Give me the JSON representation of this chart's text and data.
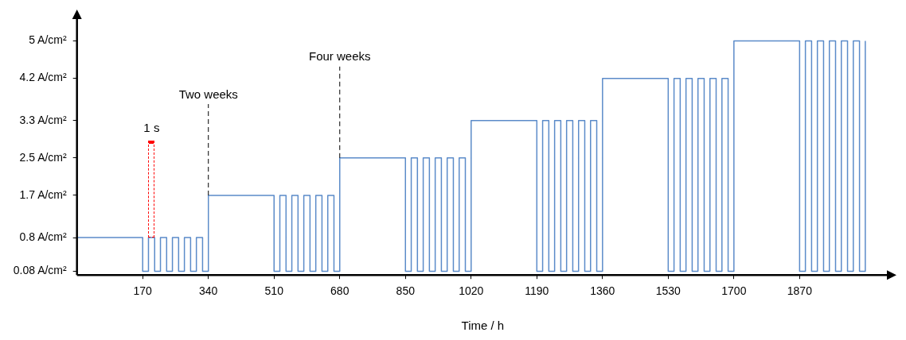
{
  "chart_data": {
    "type": "step",
    "xlabel": "Time / h",
    "x": [
      0,
      170,
      185,
      201,
      216,
      232,
      247,
      263,
      278,
      294,
      309,
      325,
      340,
      510,
      525,
      541,
      556,
      572,
      587,
      603,
      618,
      634,
      649,
      665,
      680,
      850,
      865,
      881,
      896,
      912,
      927,
      943,
      958,
      974,
      989,
      1005,
      1020,
      1190,
      1205,
      1221,
      1236,
      1252,
      1267,
      1283,
      1298,
      1314,
      1329,
      1345,
      1360,
      1530,
      1545,
      1561,
      1576,
      1592,
      1607,
      1623,
      1638,
      1654,
      1669,
      1685,
      1700,
      1870,
      1885,
      1901,
      1916,
      1932,
      1947,
      1963,
      1978,
      1994,
      2009,
      2025,
      2040
    ],
    "series": [
      {
        "color": "#5b8bc9",
        "values": [
          0.8,
          0.08,
          0.8,
          0.08,
          0.8,
          0.08,
          0.8,
          0.08,
          0.8,
          0.08,
          0.8,
          0.08,
          1.7,
          0.08,
          1.7,
          0.08,
          1.7,
          0.08,
          1.7,
          0.08,
          1.7,
          0.08,
          1.7,
          0.08,
          2.5,
          0.08,
          2.5,
          0.08,
          2.5,
          0.08,
          2.5,
          0.08,
          2.5,
          0.08,
          2.5,
          0.08,
          3.3,
          0.08,
          3.3,
          0.08,
          3.3,
          0.08,
          3.3,
          0.08,
          3.3,
          0.08,
          3.3,
          0.08,
          4.2,
          0.08,
          4.2,
          0.08,
          4.2,
          0.08,
          4.2,
          0.08,
          4.2,
          0.08,
          4.2,
          0.08,
          5,
          0.08,
          5,
          0.08,
          5,
          0.08,
          5,
          0.08,
          5,
          0.08,
          5,
          0.08,
          5
        ]
      }
    ],
    "xlim": [
      0,
      2100
    ],
    "xticks": [
      170,
      340,
      510,
      680,
      850,
      1020,
      1190,
      1360,
      1530,
      1700,
      1870
    ],
    "ylim": [
      0,
      5.5
    ],
    "yticks": [
      {
        "value": 0.08,
        "label": "0.08 A/cm²"
      },
      {
        "value": 0.8,
        "label": "0.8 A/cm²"
      },
      {
        "value": 1.7,
        "label": "1.7 A/cm²"
      },
      {
        "value": 2.5,
        "label": "2.5 A/cm²"
      },
      {
        "value": 3.3,
        "label": "3.3 A/cm²"
      },
      {
        "value": 4.2,
        "label": "4.2 A/cm²"
      },
      {
        "value": 5,
        "label": "5 A/cm²"
      }
    ],
    "ref_lines": [
      {
        "axis": "x",
        "value": 340,
        "label": "Two weeks",
        "color": "#000000",
        "line_style": "dashed"
      },
      {
        "axis": "x",
        "value": 680,
        "label": "Four weeks",
        "color": "#000000",
        "line_style": "dashed"
      }
    ],
    "annotations": [
      "1 s"
    ],
    "grid": false,
    "legend": false,
    "marker": "none",
    "line_style": "solid"
  }
}
